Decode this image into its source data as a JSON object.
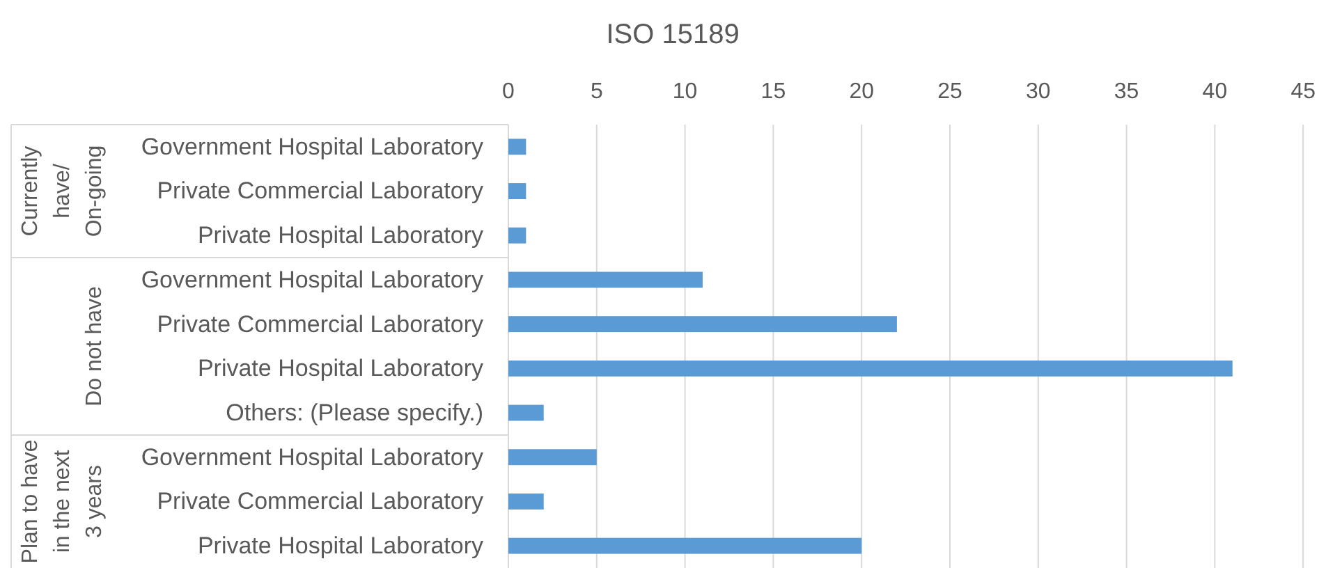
{
  "chart_data": {
    "type": "bar",
    "orientation": "horizontal",
    "title": "ISO 15189",
    "categories": [
      "Government Hospital Laboratory",
      "Private Commercial Laboratory",
      "Private Hospital Laboratory",
      "Government Hospital Laboratory",
      "Private Commercial Laboratory",
      "Private Hospital Laboratory",
      "Others: (Please specify.)",
      "Government Hospital Laboratory",
      "Private Commercial Laboratory",
      "Private Hospital Laboratory"
    ],
    "values": [
      1,
      1,
      1,
      11,
      22,
      41,
      2,
      5,
      2,
      20
    ],
    "color": "#5b9bd5",
    "xlim": [
      0,
      45
    ],
    "xticks": [
      0,
      5,
      10,
      15,
      20,
      25,
      30,
      35,
      40,
      45
    ],
    "grid": "x",
    "annotations": [
      "Currently have/ On-going",
      "Do not have",
      "Plan to have in the next 3 years"
    ]
  }
}
